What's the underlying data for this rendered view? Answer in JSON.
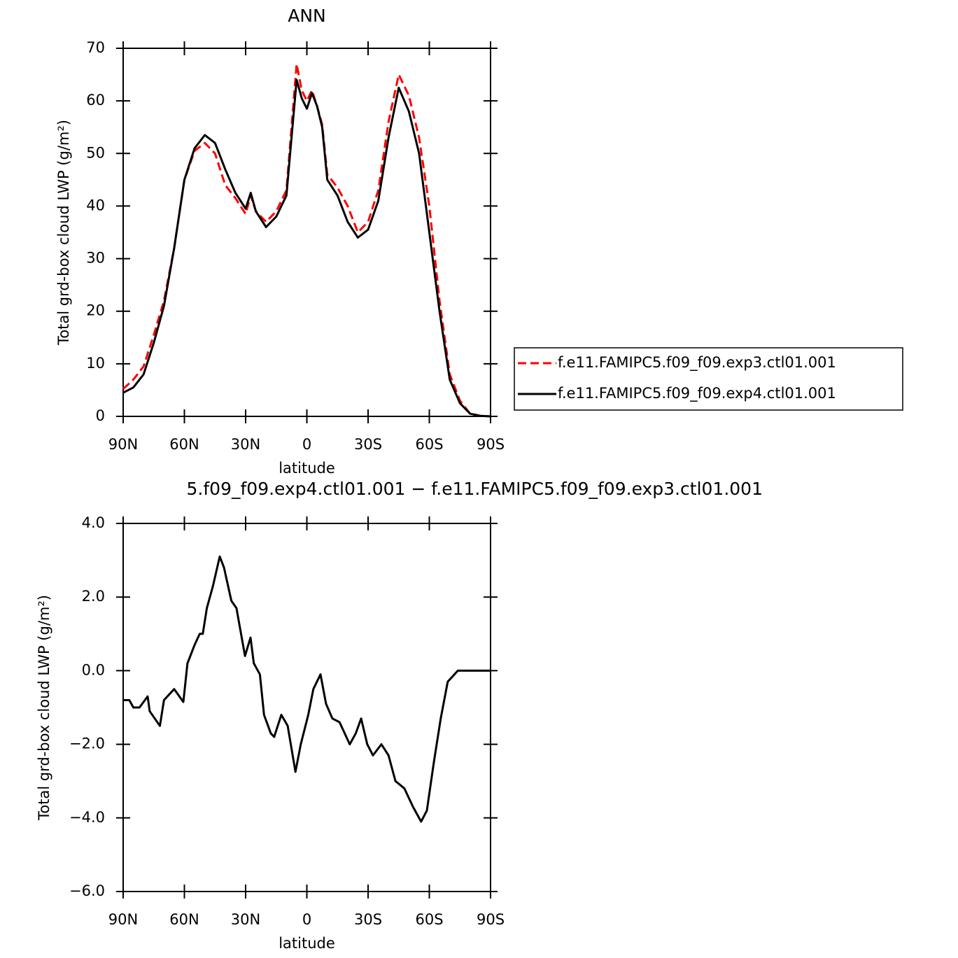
{
  "chart_data": [
    {
      "type": "line",
      "title": "ANN",
      "xlabel": "latitude",
      "ylabel": "Total grd-box cloud LWP (g/m²)",
      "x": [
        90,
        85,
        80,
        75,
        70,
        65,
        60,
        55,
        50,
        45,
        40,
        35,
        30,
        27.5,
        25,
        20,
        15,
        10,
        5,
        2.5,
        0,
        -2.5,
        -5,
        -7.5,
        -10,
        -15,
        -20,
        -25,
        -30,
        -35,
        -40,
        -45,
        -50,
        -55,
        -60,
        -65,
        -70,
        -75,
        -80,
        -85,
        -90
      ],
      "series": [
        {
          "name": "f.e11.FAMIPC5.f09_f09.exp3.ctl01.001",
          "color": "#ff0000",
          "linestyle": "dashed",
          "values": [
            5.2,
            7,
            9.5,
            15.5,
            22,
            32,
            45,
            50.5,
            52,
            50,
            44,
            41.5,
            38.5,
            42,
            39,
            37,
            39,
            43,
            67,
            62,
            60,
            62,
            59,
            55.5,
            46,
            43.5,
            40,
            35,
            37,
            43,
            56,
            65,
            61,
            53,
            40,
            22,
            8,
            3,
            0.5,
            0.1,
            0
          ]
        },
        {
          "name": "f.e11.FAMIPC5.f09_f09.exp4.ctl01.001",
          "color": "#000000",
          "linestyle": "solid",
          "values": [
            4.5,
            5.5,
            8,
            14,
            21,
            32,
            45,
            51,
            53.5,
            52,
            47,
            42.5,
            39.5,
            42.5,
            39,
            36,
            38,
            42,
            64,
            60.5,
            58.5,
            61.5,
            59,
            55,
            45,
            42,
            37,
            34,
            35.5,
            41,
            53,
            62.5,
            58,
            50,
            35,
            20,
            7,
            2.5,
            0.5,
            0.1,
            0
          ]
        }
      ],
      "xlim": [
        90,
        -90
      ],
      "xticks": [
        {
          "value": 90,
          "label": "90N"
        },
        {
          "value": 60,
          "label": "60N"
        },
        {
          "value": 30,
          "label": "30N"
        },
        0,
        {
          "value": -30,
          "label": "30S"
        },
        {
          "value": -60,
          "label": "60S"
        },
        {
          "value": -90,
          "label": "90S"
        }
      ],
      "ylim": [
        0,
        70
      ],
      "yticks": [
        0,
        10,
        20,
        30,
        40,
        50,
        60,
        70
      ],
      "legend": "right"
    },
    {
      "type": "line",
      "title": "5.f09_f09.exp4.ctl01.001 − f.e11.FAMIPC5.f09_f09.exp3.ctl01.001",
      "xlabel": "latitude",
      "ylabel": "Total grd-box cloud LWP (g/m²)",
      "x": [
        90,
        87,
        85,
        82,
        78,
        77,
        72,
        70,
        65,
        60.5,
        58.5,
        55,
        52.5,
        51,
        49,
        46,
        42.7,
        40.6,
        37,
        34.5,
        30.3,
        27.6,
        26,
        23,
        21,
        17.7,
        16,
        12.5,
        9.4,
        5.6,
        3,
        -0.7,
        -3.2,
        -6.7,
        -9.4,
        -12.5,
        -16,
        -21,
        -24,
        -26.6,
        -29.6,
        -32.4,
        -36.5,
        -40,
        -43.4,
        -47.8,
        -52,
        -56,
        -58.8,
        -62.2,
        -65.6,
        -69,
        -74,
        -79,
        -90
      ],
      "series": [
        {
          "color": "#000000",
          "linestyle": "solid",
          "values": [
            -0.8,
            -0.8,
            -1.0,
            -1.0,
            -0.7,
            -1.1,
            -1.5,
            -0.8,
            -0.5,
            -0.85,
            0.2,
            0.7,
            1.0,
            1.0,
            1.7,
            2.3,
            3.1,
            2.8,
            1.9,
            1.7,
            0.4,
            0.9,
            0.2,
            -0.1,
            -1.2,
            -1.7,
            -1.8,
            -1.2,
            -1.5,
            -2.75,
            -2.0,
            -1.2,
            -0.5,
            -0.1,
            -0.9,
            -1.3,
            -1.4,
            -2.0,
            -1.7,
            -1.3,
            -2.0,
            -2.3,
            -2.0,
            -2.3,
            -3.0,
            -3.2,
            -3.7,
            -4.1,
            -3.8,
            -2.5,
            -1.3,
            -0.3,
            0.0,
            0.0,
            0.0
          ]
        }
      ],
      "xlim": [
        90,
        -90
      ],
      "xticks": [
        {
          "value": 90,
          "label": "90N"
        },
        {
          "value": 60,
          "label": "60N"
        },
        {
          "value": 30,
          "label": "30N"
        },
        0,
        {
          "value": -30,
          "label": "30S"
        },
        {
          "value": -60,
          "label": "60S"
        },
        {
          "value": -90,
          "label": "90S"
        }
      ],
      "ylim": [
        -6,
        4
      ],
      "yticks": [
        {
          "value": 4,
          "label": "4.0"
        },
        {
          "value": 2,
          "label": "2.0"
        },
        {
          "value": 0,
          "label": "0.0"
        },
        {
          "value": -2,
          "label": "−2.0"
        },
        {
          "value": -4,
          "label": "−4.0"
        },
        {
          "value": -6,
          "label": "−6.0"
        }
      ]
    }
  ]
}
